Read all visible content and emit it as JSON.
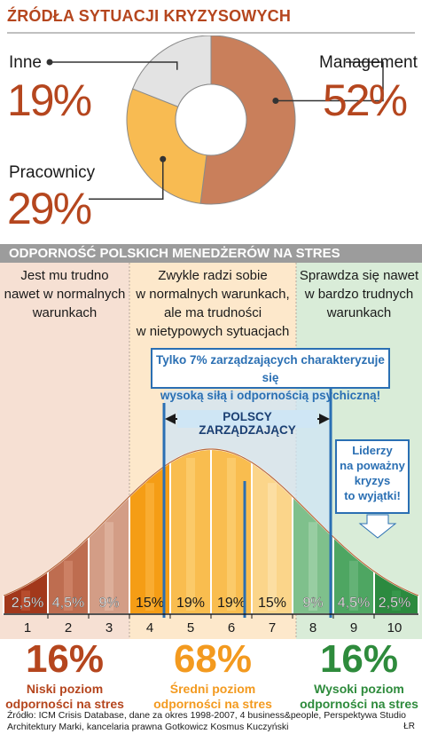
{
  "top_title": "ŹRÓDŁA SYTUACJI KRYZYSOWYCH",
  "band_title": "ODPORNOŚĆ POLSKICH MENEDŻERÓW NA STRES",
  "colors": {
    "accent": "#b5461e",
    "management": "#c97f5b",
    "pracownicy": "#f8bb52",
    "inne": "#e3e3e3",
    "low": "#b5461e",
    "mid": "#f39a1f",
    "high": "#2e8b3c",
    "blue": "#2a6fb3"
  },
  "columns": {
    "low": [
      "Jest mu trudno",
      "nawet w normalnych",
      "warunkach"
    ],
    "mid": [
      "Zwykle radzi sobie",
      "w normalnych warunkach,",
      "ale ma trudności",
      "w nietypowych sytuacjach"
    ],
    "high": [
      "Sprawdza się nawet",
      "w bardzo trudnych",
      "warunkach"
    ]
  },
  "callout_top": [
    "Tylko 7% zarządzających charakteryzuje się",
    "wysoką siłą i odpornością psychiczną!"
  ],
  "polscy_label": "POLSCY ZARZĄDZAJĄCY",
  "callout_liderzy": [
    "Liderzy",
    "na poważny",
    "kryzys",
    "to wyjątki!"
  ],
  "groups": [
    {
      "pct": "16%",
      "line1": "Niski poziom",
      "line2": "odporności na stres"
    },
    {
      "pct": "68%",
      "line1": "Średni poziom",
      "line2": "odporności na stres"
    },
    {
      "pct": "16%",
      "line1": "Wysoki poziom",
      "line2": "odporności na stres"
    }
  ],
  "source": "Źródło: ICM Crisis Database, dane za okres 1998-2007, 4 business&people, Perspektywa Studio Architektury Marki, kancelaria prawna Gotkowicz Kosmus Kuczyński",
  "author": "ŁR",
  "chart_data": [
    {
      "type": "pie",
      "title": "ŹRÓDŁA SYTUACJI KRYZYSOWYCH",
      "categories": [
        "Management",
        "Pracownicy",
        "Inne"
      ],
      "values": [
        52,
        29,
        19
      ],
      "labels": [
        "52%",
        "29%",
        "19%"
      ]
    },
    {
      "type": "bar",
      "title": "ODPORNOŚĆ POLSKICH MENEDŻERÓW NA STRES",
      "categories": [
        "1",
        "2",
        "3",
        "4",
        "5",
        "6",
        "7",
        "8",
        "9",
        "10"
      ],
      "values": [
        2.5,
        4.5,
        9,
        15,
        19,
        19,
        15,
        9,
        4.5,
        2.5
      ],
      "labels": [
        "2,5%",
        "4,5%",
        "9%",
        "15%",
        "19%",
        "19%",
        "15%",
        "9%",
        "4,5%",
        "2,5%"
      ]
    }
  ]
}
